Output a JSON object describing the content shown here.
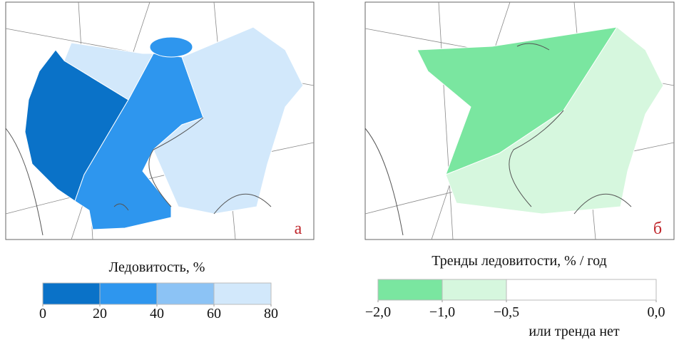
{
  "panels": [
    {
      "label": "а"
    },
    {
      "label": "б"
    }
  ],
  "legends": [
    {
      "title": "Ледовитость, %",
      "ticks": [
        0,
        20,
        40,
        60,
        80
      ],
      "colors": [
        "#0a72c8",
        "#2e96ee",
        "#8cc3f5",
        "#d2e8fb"
      ]
    },
    {
      "title": "Тренды ледовитости, % / год",
      "ticks": [
        {
          "value": -2,
          "label": "−2,0"
        },
        {
          "value": -1,
          "label": "−1,0"
        },
        {
          "value": -0.5,
          "label": "−0,5"
        },
        {
          "value": 0,
          "label": "0,0"
        }
      ],
      "colors": [
        "#7ae6a0",
        "#d6f7de",
        "#ffffff"
      ],
      "note": "или тренда нет"
    }
  ]
}
